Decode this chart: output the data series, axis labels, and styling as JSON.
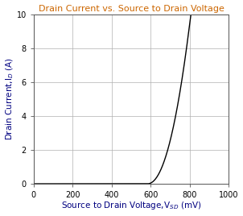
{
  "title": "Drain Current vs. Source to Drain Voltage",
  "xlabel": "Source to Drain Voltage,V$_{SD}$ (mV)",
  "ylabel": "Drain Current,I$_D$ (A)",
  "xlim": [
    0,
    1000
  ],
  "ylim": [
    0,
    10
  ],
  "xticks": [
    0,
    200,
    400,
    600,
    800,
    1000
  ],
  "yticks": [
    0,
    2,
    4,
    6,
    8,
    10
  ],
  "line_color": "#000000",
  "background_color": "#ffffff",
  "grid_color": "#b0b0b0",
  "title_color": "#cc6600",
  "axis_label_color": "#000080",
  "threshold_mv": 583,
  "curve_k": 0.000105,
  "curve_n": 2.12
}
